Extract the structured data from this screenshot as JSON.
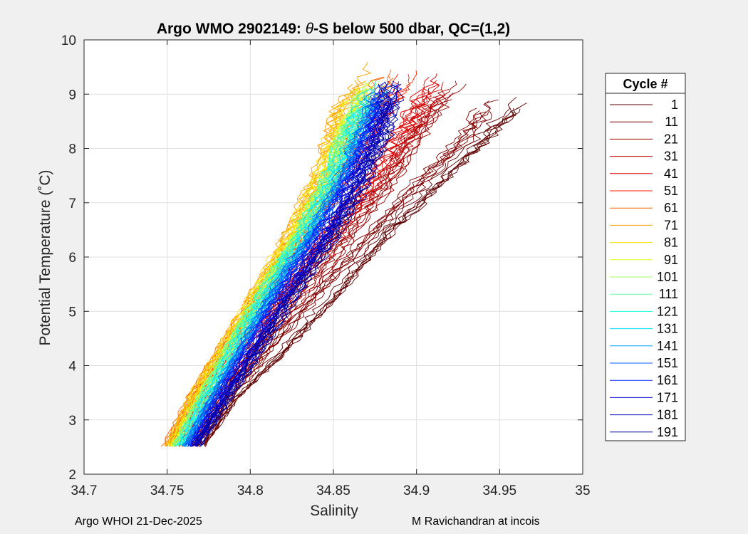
{
  "chart_data": {
    "type": "line",
    "title": "Argo WMO 2902149: θ-S below 500 dbar,  QC=(1,2)",
    "title_parts": {
      "prefix": "Argo WMO 2902149: ",
      "symbol": "θ",
      "suffix": "-S below 500 dbar,  QC=(1,2)"
    },
    "xlabel": "Salinity",
    "ylabel": "Potential Temperature (˚C)",
    "xlim": [
      34.7,
      35.0
    ],
    "ylim": [
      2,
      10
    ],
    "xticks": [
      34.7,
      34.75,
      34.8,
      34.85,
      34.9,
      34.95,
      35.0
    ],
    "xtick_labels": [
      "34.7",
      "34.75",
      "34.8",
      "34.85",
      "34.9",
      "34.95",
      "35"
    ],
    "yticks": [
      2,
      3,
      4,
      5,
      6,
      7,
      8,
      9,
      10
    ],
    "ytick_labels": [
      "2",
      "3",
      "4",
      "5",
      "6",
      "7",
      "8",
      "9",
      "10"
    ],
    "grid": true,
    "legend": {
      "title": "Cycle #",
      "location": "outside-right",
      "entries": [
        "1",
        "11",
        "21",
        "31",
        "41",
        "51",
        "61",
        "71",
        "81",
        "91",
        "101",
        "111",
        "121",
        "131",
        "141",
        "151",
        "161",
        "171",
        "181",
        "191"
      ],
      "colors": [
        "#600000",
        "#800000",
        "#a00000",
        "#c00000",
        "#e00000",
        "#ff2000",
        "#ff6000",
        "#ffa000",
        "#ffe000",
        "#e0ff20",
        "#a0ff60",
        "#60ffa0",
        "#20ffe0",
        "#00e0ff",
        "#00a0ff",
        "#0060ff",
        "#0020ff",
        "#0000e0",
        "#0000c0",
        "#0000a0"
      ]
    },
    "series_envelope": [
      {
        "name": "1",
        "profile": [
          [
            34.77,
            2.5
          ],
          [
            34.79,
            3.4
          ],
          [
            34.82,
            4.3
          ],
          [
            34.85,
            5.3
          ],
          [
            34.88,
            6.4
          ],
          [
            34.91,
            7.3
          ],
          [
            34.94,
            8.2
          ],
          [
            34.97,
            9.1
          ]
        ]
      },
      {
        "name": "11",
        "profile": [
          [
            34.769,
            2.5
          ],
          [
            34.79,
            3.5
          ],
          [
            34.817,
            4.5
          ],
          [
            34.843,
            5.4
          ],
          [
            34.87,
            6.3
          ],
          [
            34.9,
            7.3
          ],
          [
            34.93,
            8.2
          ],
          [
            34.95,
            9.1
          ]
        ]
      },
      {
        "name": "21",
        "profile": [
          [
            34.765,
            2.5
          ],
          [
            34.785,
            3.5
          ],
          [
            34.81,
            4.5
          ],
          [
            34.835,
            5.4
          ],
          [
            34.86,
            6.4
          ],
          [
            34.885,
            7.4
          ],
          [
            34.905,
            8.4
          ],
          [
            34.925,
            9.3
          ]
        ]
      },
      {
        "name": "31",
        "profile": [
          [
            34.76,
            2.5
          ],
          [
            34.78,
            3.5
          ],
          [
            34.805,
            4.5
          ],
          [
            34.828,
            5.5
          ],
          [
            34.852,
            6.4
          ],
          [
            34.878,
            7.4
          ],
          [
            34.9,
            8.4
          ],
          [
            34.918,
            9.3
          ]
        ]
      },
      {
        "name": "41",
        "profile": [
          [
            34.755,
            2.5
          ],
          [
            34.774,
            3.5
          ],
          [
            34.798,
            4.5
          ],
          [
            34.822,
            5.5
          ],
          [
            34.846,
            6.5
          ],
          [
            34.87,
            7.4
          ],
          [
            34.893,
            8.5
          ],
          [
            34.912,
            9.4
          ]
        ]
      },
      {
        "name": "51",
        "profile": [
          [
            34.75,
            2.5
          ],
          [
            34.768,
            3.5
          ],
          [
            34.79,
            4.5
          ],
          [
            34.812,
            5.5
          ],
          [
            34.835,
            6.5
          ],
          [
            34.856,
            7.5
          ],
          [
            34.876,
            8.5
          ],
          [
            34.895,
            9.5
          ]
        ]
      },
      {
        "name": "61",
        "profile": [
          [
            34.749,
            2.5
          ],
          [
            34.766,
            3.5
          ],
          [
            34.787,
            4.5
          ],
          [
            34.808,
            5.5
          ],
          [
            34.83,
            6.5
          ],
          [
            34.849,
            7.5
          ],
          [
            34.866,
            8.5
          ],
          [
            34.884,
            9.5
          ]
        ]
      },
      {
        "name": "71",
        "profile": [
          [
            34.75,
            2.5
          ],
          [
            34.766,
            3.5
          ],
          [
            34.786,
            4.5
          ],
          [
            34.806,
            5.5
          ],
          [
            34.826,
            6.6
          ],
          [
            34.842,
            7.6
          ],
          [
            34.852,
            8.6
          ],
          [
            34.872,
            9.6
          ]
        ]
      },
      {
        "name": "81",
        "profile": [
          [
            34.752,
            2.5
          ],
          [
            34.768,
            3.5
          ],
          [
            34.788,
            4.5
          ],
          [
            34.807,
            5.5
          ],
          [
            34.827,
            6.5
          ],
          [
            34.843,
            7.5
          ],
          [
            34.855,
            8.5
          ],
          [
            34.87,
            9.4
          ]
        ]
      },
      {
        "name": "91",
        "profile": [
          [
            34.753,
            2.5
          ],
          [
            34.77,
            3.5
          ],
          [
            34.79,
            4.5
          ],
          [
            34.809,
            5.5
          ],
          [
            34.829,
            6.5
          ],
          [
            34.846,
            7.5
          ],
          [
            34.858,
            8.5
          ],
          [
            34.872,
            9.3
          ]
        ]
      },
      {
        "name": "101",
        "profile": [
          [
            34.755,
            2.5
          ],
          [
            34.772,
            3.5
          ],
          [
            34.791,
            4.5
          ],
          [
            34.81,
            5.5
          ],
          [
            34.83,
            6.4
          ],
          [
            34.847,
            7.4
          ],
          [
            34.859,
            8.4
          ],
          [
            34.874,
            9.3
          ]
        ]
      },
      {
        "name": "111",
        "profile": [
          [
            34.756,
            2.5
          ],
          [
            34.773,
            3.5
          ],
          [
            34.792,
            4.5
          ],
          [
            34.812,
            5.5
          ],
          [
            34.831,
            6.4
          ],
          [
            34.848,
            7.4
          ],
          [
            34.861,
            8.4
          ],
          [
            34.875,
            9.2
          ]
        ]
      },
      {
        "name": "121",
        "profile": [
          [
            34.758,
            2.5
          ],
          [
            34.775,
            3.5
          ],
          [
            34.794,
            4.5
          ],
          [
            34.813,
            5.5
          ],
          [
            34.832,
            6.4
          ],
          [
            34.849,
            7.4
          ],
          [
            34.862,
            8.4
          ],
          [
            34.876,
            9.2
          ]
        ]
      },
      {
        "name": "131",
        "profile": [
          [
            34.759,
            2.5
          ],
          [
            34.776,
            3.5
          ],
          [
            34.795,
            4.5
          ],
          [
            34.814,
            5.5
          ],
          [
            34.833,
            6.4
          ],
          [
            34.851,
            7.4
          ],
          [
            34.864,
            8.4
          ],
          [
            34.878,
            9.3
          ]
        ]
      },
      {
        "name": "141",
        "profile": [
          [
            34.76,
            2.5
          ],
          [
            34.778,
            3.5
          ],
          [
            34.797,
            4.5
          ],
          [
            34.816,
            5.5
          ],
          [
            34.835,
            6.4
          ],
          [
            34.853,
            7.4
          ],
          [
            34.867,
            8.4
          ],
          [
            34.88,
            9.3
          ]
        ]
      },
      {
        "name": "151",
        "profile": [
          [
            34.762,
            2.5
          ],
          [
            34.78,
            3.5
          ],
          [
            34.799,
            4.5
          ],
          [
            34.818,
            5.5
          ],
          [
            34.838,
            6.4
          ],
          [
            34.856,
            7.4
          ],
          [
            34.87,
            8.4
          ],
          [
            34.882,
            9.3
          ]
        ]
      },
      {
        "name": "161",
        "profile": [
          [
            34.764,
            2.5
          ],
          [
            34.782,
            3.5
          ],
          [
            34.802,
            4.5
          ],
          [
            34.821,
            5.5
          ],
          [
            34.841,
            6.4
          ],
          [
            34.859,
            7.4
          ],
          [
            34.873,
            8.4
          ],
          [
            34.884,
            9.3
          ]
        ]
      },
      {
        "name": "171",
        "profile": [
          [
            34.766,
            2.5
          ],
          [
            34.785,
            3.5
          ],
          [
            34.805,
            4.5
          ],
          [
            34.825,
            5.5
          ],
          [
            34.845,
            6.4
          ],
          [
            34.863,
            7.4
          ],
          [
            34.876,
            8.4
          ],
          [
            34.886,
            9.3
          ]
        ]
      },
      {
        "name": "181",
        "profile": [
          [
            34.767,
            2.5
          ],
          [
            34.787,
            3.5
          ],
          [
            34.808,
            4.5
          ],
          [
            34.828,
            5.5
          ],
          [
            34.848,
            6.4
          ],
          [
            34.866,
            7.4
          ],
          [
            34.879,
            8.4
          ],
          [
            34.888,
            9.3
          ]
        ]
      },
      {
        "name": "191",
        "profile": [
          [
            34.768,
            2.5
          ],
          [
            34.789,
            3.5
          ],
          [
            34.81,
            4.5
          ],
          [
            34.831,
            5.5
          ],
          [
            34.851,
            6.4
          ],
          [
            34.869,
            7.4
          ],
          [
            34.882,
            8.4
          ],
          [
            34.89,
            9.3
          ]
        ]
      }
    ]
  },
  "footer": {
    "left": "Argo WHOI 21-Dec-2025",
    "right": "M Ravichandran at incois"
  }
}
